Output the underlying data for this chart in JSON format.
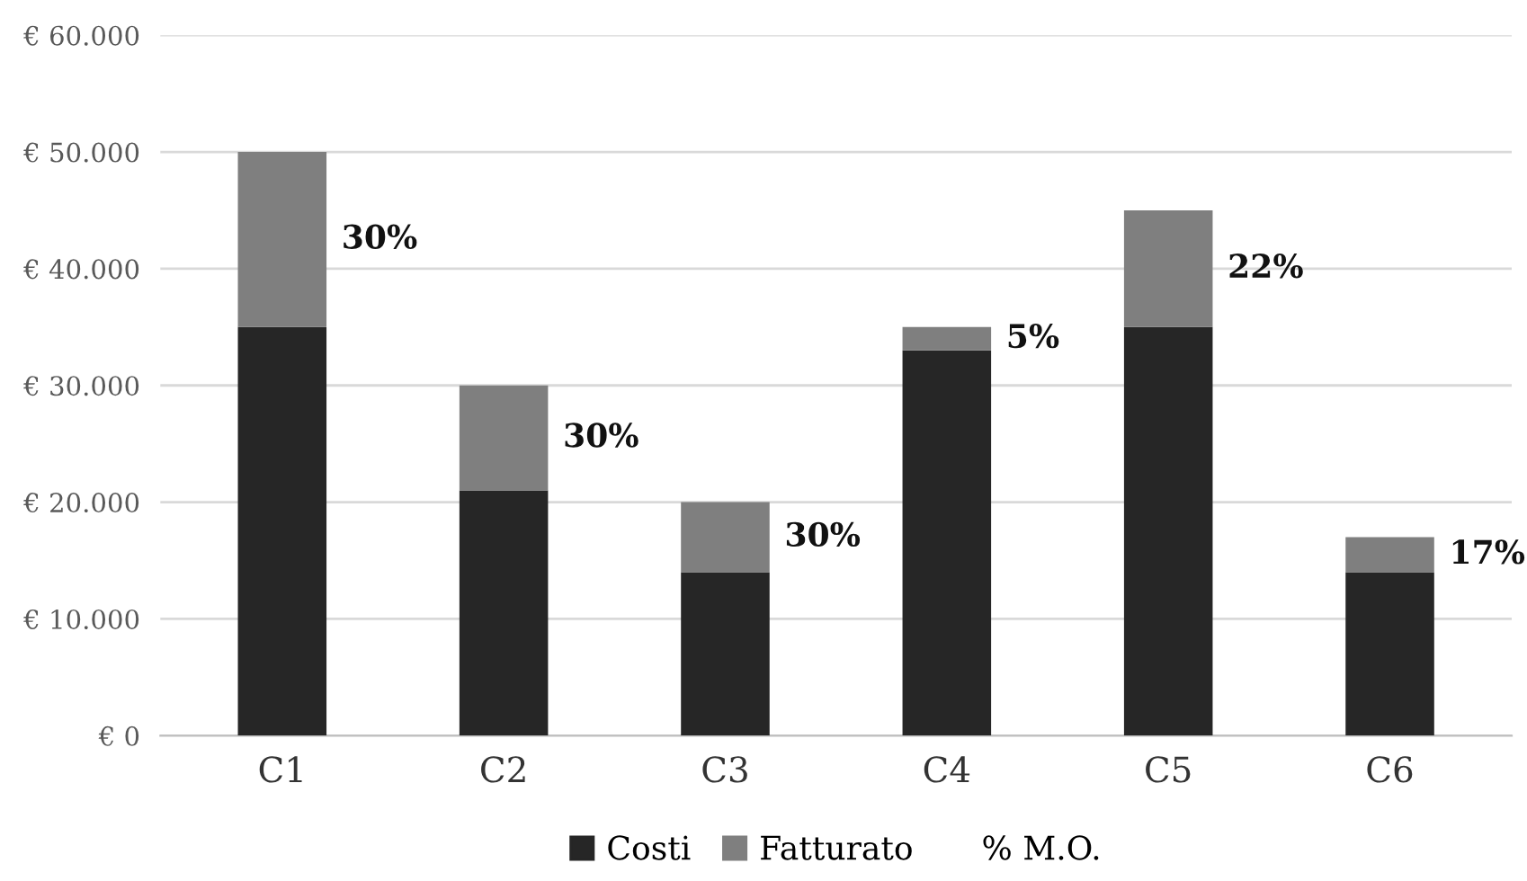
{
  "chart_data": {
    "type": "bar",
    "stacked": true,
    "categories": [
      "C1",
      "C2",
      "C3",
      "C4",
      "C5",
      "C6"
    ],
    "series": [
      {
        "name": "Costi",
        "color": "#262626",
        "values": [
          35000,
          21000,
          14000,
          33000,
          35000,
          14000
        ]
      },
      {
        "name": "Fatturato",
        "color": "#7f7f7f",
        "values": [
          15000,
          9000,
          6000,
          2000,
          10000,
          3000
        ]
      }
    ],
    "annotations": [
      "% M.O.",
      "30%",
      "30%",
      "30%",
      "5%",
      "22%",
      "17%"
    ],
    "ylim": [
      0,
      60000
    ],
    "yticks": [
      {
        "value": 0,
        "label": "€ 0"
      },
      {
        "value": 10000,
        "label": "€ 10.000"
      },
      {
        "value": 20000,
        "label": "€ 20.000"
      },
      {
        "value": 30000,
        "label": "€ 30.000"
      },
      {
        "value": 40000,
        "label": "€ 40.000"
      },
      {
        "value": 50000,
        "label": "€ 50.000"
      },
      {
        "value": 60000,
        "label": "€ 60.000"
      }
    ],
    "grid": "y",
    "legend": "bottom"
  }
}
